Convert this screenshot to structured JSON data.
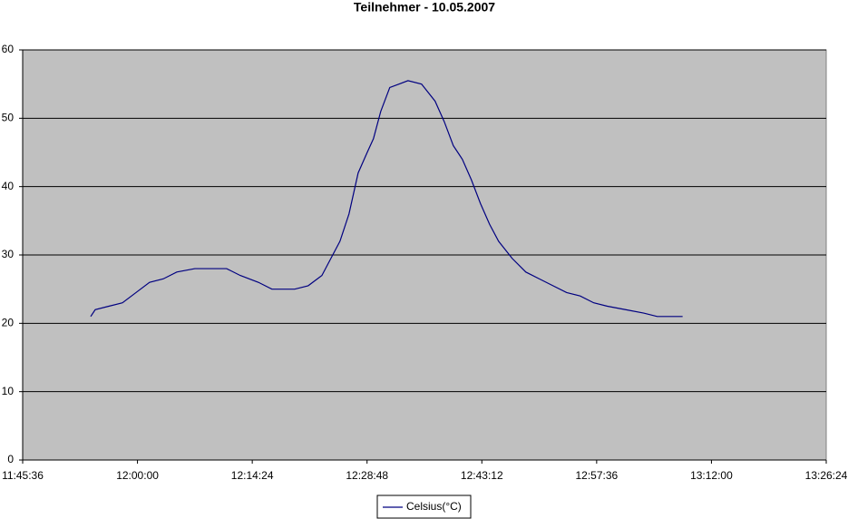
{
  "chart_data": {
    "type": "line",
    "title": "Teilnehmer - 10.05.2007",
    "x": [
      42848,
      42882,
      42984,
      43087,
      43189,
      43291,
      43394,
      43496,
      43632,
      43871,
      43974,
      44110,
      44212,
      44383,
      44485,
      44588,
      44656,
      44724,
      44792,
      44861,
      44929,
      44976,
      45031,
      45099,
      45168,
      45236,
      45338,
      45440,
      45509,
      45577,
      45645,
      45713,
      45782,
      45850,
      45918,
      46020,
      46123,
      46225,
      46327,
      46430,
      46532,
      46634,
      46737,
      46873,
      47010,
      47112,
      47303
    ],
    "series": [
      {
        "name": "Celsius(°C)",
        "color": "#000080",
        "values": [
          21,
          22,
          22.5,
          23,
          24.5,
          26,
          26.5,
          27.5,
          28,
          28,
          27,
          26,
          25,
          25,
          25.5,
          27,
          29.5,
          32,
          36,
          42,
          45,
          47,
          51,
          54.5,
          55,
          55.5,
          55,
          52.5,
          49.5,
          46,
          44,
          41,
          37.5,
          34.5,
          32,
          29.5,
          27.5,
          26.5,
          25.5,
          24.5,
          24,
          23,
          22.5,
          22,
          21.5,
          21,
          21
        ]
      }
    ],
    "xlim": [
      42336,
      48384
    ],
    "xticks": [
      {
        "value": 42336,
        "label": "11:45:36"
      },
      {
        "value": 43200,
        "label": "12:00:00"
      },
      {
        "value": 44064,
        "label": "12:14:24"
      },
      {
        "value": 44928,
        "label": "12:28:48"
      },
      {
        "value": 45792,
        "label": "12:43:12"
      },
      {
        "value": 46656,
        "label": "12:57:36"
      },
      {
        "value": 47520,
        "label": "13:12:00"
      },
      {
        "value": 48384,
        "label": "13:26:24"
      }
    ],
    "ylim": [
      0,
      60
    ],
    "yticks": [
      0,
      10,
      20,
      30,
      40,
      50,
      60
    ],
    "grid": true,
    "legend": "bottom"
  }
}
